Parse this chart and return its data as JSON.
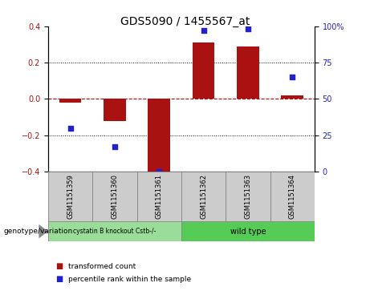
{
  "title": "GDS5090 / 1455567_at",
  "samples": [
    "GSM1151359",
    "GSM1151360",
    "GSM1151361",
    "GSM1151362",
    "GSM1151363",
    "GSM1151364"
  ],
  "transformed_count": [
    -0.02,
    -0.12,
    -0.41,
    0.31,
    0.29,
    0.02
  ],
  "percentile_rank": [
    30,
    17,
    0,
    97,
    98,
    65
  ],
  "ylim_left": [
    -0.4,
    0.4
  ],
  "ylim_right": [
    0,
    100
  ],
  "yticks_left": [
    -0.4,
    -0.2,
    0.0,
    0.2,
    0.4
  ],
  "yticks_right": [
    0,
    25,
    50,
    75,
    100
  ],
  "ytick_right_labels": [
    "0",
    "25",
    "50",
    "75",
    "100%"
  ],
  "bar_color": "#aa1111",
  "scatter_color": "#2222cc",
  "hline_color": "#cc0000",
  "dotted_color": "#111111",
  "bg_color": "#ffffff",
  "plot_bg": "#ffffff",
  "group1_label": "cystatin B knockout Cstb-/-",
  "group2_label": "wild type",
  "group1_indices": [
    0,
    1,
    2
  ],
  "group2_indices": [
    3,
    4,
    5
  ],
  "group1_bg": "#99dd99",
  "group2_bg": "#55cc55",
  "sample_bg": "#cccccc",
  "genotype_label": "genotype/variation",
  "legend_bar_label": "transformed count",
  "legend_scatter_label": "percentile rank within the sample",
  "title_fontsize": 10,
  "tick_fontsize": 7,
  "bar_width": 0.5
}
